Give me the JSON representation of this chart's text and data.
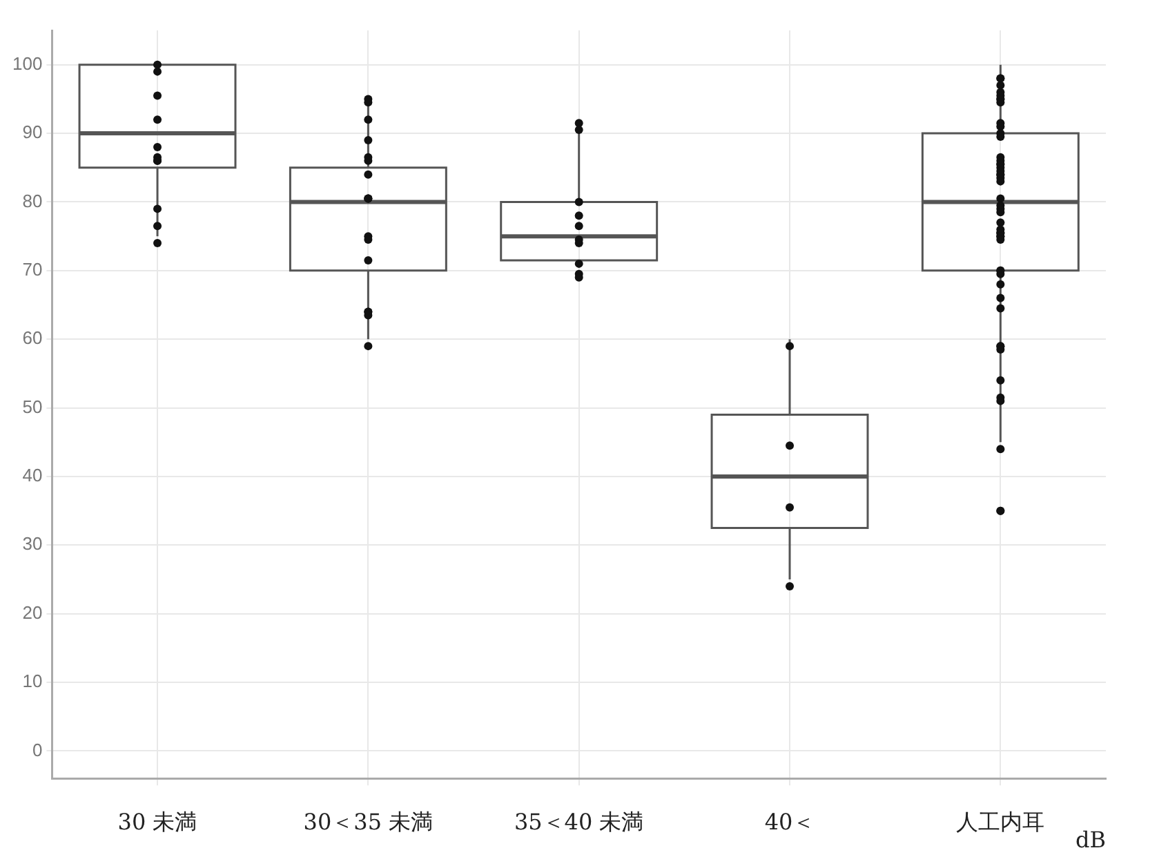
{
  "chart_data": {
    "type": "box",
    "xlabel": "dB",
    "categories": [
      "30 未満",
      "30＜35 未満",
      "35＜40 未満",
      "40＜",
      "人工内耳"
    ],
    "boxes": [
      {
        "low": 75,
        "q1": 85,
        "median": 90,
        "q3": 100,
        "high": 100
      },
      {
        "low": 60,
        "q1": 70,
        "median": 80,
        "q3": 85,
        "high": 95
      },
      {
        "low": 71,
        "q1": 71.5,
        "median": 75,
        "q3": 80,
        "high": 91.5
      },
      {
        "low": 25,
        "q1": 32.5,
        "median": 40,
        "q3": 49,
        "high": 60
      },
      {
        "low": 45,
        "q1": 70,
        "median": 80,
        "q3": 90,
        "high": 100
      }
    ],
    "color": "#555555",
    "series": [
      {
        "type": "scatter",
        "color": "#111111",
        "x": [
          "30 未満",
          "30 未満",
          "30 未満",
          "30 未満",
          "30 未満",
          "30 未満",
          "30 未満",
          "30 未満",
          "30 未満",
          "30 未満",
          "30 未満",
          "30＜35 未満",
          "30＜35 未満",
          "30＜35 未満",
          "30＜35 未満",
          "30＜35 未満",
          "30＜35 未満",
          "30＜35 未満",
          "30＜35 未満",
          "30＜35 未満",
          "30＜35 未満",
          "30＜35 未満",
          "30＜35 未満",
          "30＜35 未満",
          "30＜35 未満",
          "30＜35 未満",
          "30＜35 未満",
          "30＜35 未満",
          "35＜40 未満",
          "35＜40 未満",
          "35＜40 未満",
          "35＜40 未満",
          "35＜40 未満",
          "35＜40 未満",
          "35＜40 未満",
          "35＜40 未満",
          "35＜40 未満",
          "35＜40 未満",
          "40＜",
          "40＜",
          "40＜",
          "40＜",
          "人工内耳",
          "人工内耳",
          "人工内耳",
          "人工内耳",
          "人工内耳",
          "人工内耳",
          "人工内耳",
          "人工内耳",
          "人工内耳",
          "人工内耳",
          "人工内耳",
          "人工内耳",
          "人工内耳",
          "人工内耳",
          "人工内耳",
          "人工内耳",
          "人工内耳",
          "人工内耳",
          "人工内耳",
          "人工内耳",
          "人工内耳",
          "人工内耳",
          "人工内耳",
          "人工内耳",
          "人工内耳",
          "人工内耳",
          "人工内耳",
          "人工内耳",
          "人工内耳",
          "人工内耳",
          "人工内耳",
          "人工内耳",
          "人工内耳",
          "人工内耳",
          "人工内耳",
          "人工内耳",
          "人工内耳",
          "人工内耳",
          "人工内耳",
          "人工内耳",
          "人工内耳",
          "人工内耳",
          "人工内耳",
          "人工内耳",
          "人工内耳",
          "人工内耳",
          "人工内耳",
          "人工内耳"
        ],
        "values": [
          100,
          99,
          95.5,
          92,
          88,
          86.5,
          86,
          86,
          79,
          76.5,
          74,
          95,
          94.5,
          92,
          89,
          86.5,
          86,
          84,
          80.5,
          80.5,
          80.5,
          75,
          74.5,
          71.5,
          64,
          64,
          63.5,
          59,
          91.5,
          90.5,
          80,
          78,
          76.5,
          74.5,
          74,
          71,
          69.5,
          69,
          59,
          44.5,
          35.5,
          24,
          98,
          98,
          97,
          96,
          95.5,
          95,
          95,
          94.5,
          91.5,
          91,
          90,
          89.5,
          86.5,
          86,
          85.5,
          85.5,
          85,
          84.5,
          84,
          84,
          83.5,
          83,
          80.5,
          79.5,
          79,
          78.5,
          77,
          76,
          75.5,
          75.5,
          75,
          75,
          74.5,
          70,
          70,
          69.5,
          68,
          66,
          64.5,
          59,
          59,
          58.5,
          54,
          51.5,
          51,
          44,
          35,
          35
        ]
      }
    ],
    "ylim": [
      -4,
      105
    ],
    "yticks": [
      0,
      10,
      20,
      30,
      40,
      50,
      60,
      70,
      80,
      90,
      100
    ],
    "grid": true,
    "marker": "circle"
  }
}
